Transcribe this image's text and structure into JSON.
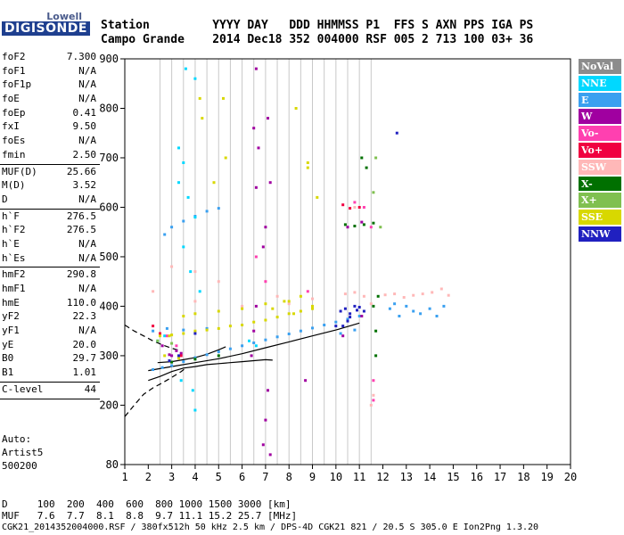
{
  "logo": {
    "brand": "Lowell",
    "product": "DIGISONDE"
  },
  "header": {
    "row1": "Station         YYYY DAY   DDD HHMMSS P1  FFS S AXN PPS IGA PS",
    "row2": "Campo Grande    2014 Dec18 352 004000 RSF 005 2 713 100 03+ 36"
  },
  "params": [
    {
      "name": "foF2",
      "value": "7.300"
    },
    {
      "name": "foF1",
      "value": "N/A"
    },
    {
      "name": "foF1p",
      "value": "N/A"
    },
    {
      "name": "foE",
      "value": "N/A"
    },
    {
      "name": "foEp",
      "value": "0.41"
    },
    {
      "name": "fxI",
      "value": "9.50"
    },
    {
      "name": "foEs",
      "value": "N/A"
    },
    {
      "name": "fmin",
      "value": "2.50"
    },
    {
      "name": "MUF(D)",
      "value": "25.66"
    },
    {
      "name": "M(D)",
      "value": "3.52"
    },
    {
      "name": "D",
      "value": "N/A"
    },
    {
      "name": "h`F",
      "value": "276.5"
    },
    {
      "name": "h`F2",
      "value": "276.5"
    },
    {
      "name": "h`E",
      "value": "N/A"
    },
    {
      "name": "h`Es",
      "value": "N/A"
    },
    {
      "name": "hmF2",
      "value": "290.8"
    },
    {
      "name": "hmF1",
      "value": "N/A"
    },
    {
      "name": "hmE",
      "value": "110.0"
    },
    {
      "name": "yF2",
      "value": "22.3"
    },
    {
      "name": "yF1",
      "value": "N/A"
    },
    {
      "name": "yE",
      "value": "20.0"
    },
    {
      "name": "B0",
      "value": "29.7"
    },
    {
      "name": "B1",
      "value": "1.01"
    },
    {
      "name": "C-level",
      "value": "44"
    }
  ],
  "auto": {
    "line1": "Auto:",
    "line2": "Artist5",
    "line3": "500200"
  },
  "legend": [
    {
      "label": "NoVal",
      "color": "#8c8c8c"
    },
    {
      "label": "NNE",
      "color": "#00d8ff"
    },
    {
      "label": "E",
      "color": "#3aa0f0"
    },
    {
      "label": "W",
      "color": "#a000a0"
    },
    {
      "label": "Vo-",
      "color": "#ff40b0"
    },
    {
      "label": "Vo+",
      "color": "#f00040"
    },
    {
      "label": "SSW",
      "color": "#ffb8b8"
    },
    {
      "label": "X-",
      "color": "#007000"
    },
    {
      "label": "X+",
      "color": "#80c050"
    },
    {
      "label": "SSE",
      "color": "#d8d800"
    },
    {
      "label": "NNW",
      "color": "#2020c0"
    }
  ],
  "footer": {
    "line1": "D     100  200  400  600  800 1000 1500 3000 [km]",
    "line2": "MUF   7.6  7.7  8.1  8.8  9.7 11.1 15.2 25.7 [MHz]",
    "line3": "CGK21_2014352004000.RSF / 380fx512h 50 kHz 2.5 km / DPS-4D CGK21 821 / 20.5 S 305.0 E Ion2Png 1.3.20"
  },
  "chart_data": {
    "type": "scatter",
    "xlim": [
      1,
      20
    ],
    "ylim": [
      80,
      900
    ],
    "x_ticks": [
      1,
      2,
      3,
      4,
      5,
      6,
      7,
      8,
      9,
      10,
      11,
      12,
      13,
      14,
      15,
      16,
      17,
      18,
      19,
      20
    ],
    "y_ticks": [
      80,
      200,
      300,
      400,
      500,
      600,
      700,
      800,
      900
    ],
    "vertical_grid_x": [
      2.5,
      3,
      3.5,
      4,
      4.5,
      5,
      5.5,
      6,
      6.5,
      7,
      7.5,
      8,
      8.5,
      9,
      9.5,
      10,
      10.5,
      11,
      11.5
    ],
    "series": [
      {
        "name": "E",
        "color": "#3aa0f0",
        "points": [
          [
            2.2,
            272
          ],
          [
            2.6,
            276
          ],
          [
            3,
            280
          ],
          [
            3.5,
            288
          ],
          [
            4,
            296
          ],
          [
            4.5,
            302
          ],
          [
            5,
            308
          ],
          [
            5.5,
            314
          ],
          [
            6,
            320
          ],
          [
            6.5,
            326
          ],
          [
            7,
            332
          ],
          [
            7.5,
            338
          ],
          [
            8,
            344
          ],
          [
            8.5,
            350
          ],
          [
            9,
            356
          ],
          [
            9.5,
            362
          ],
          [
            10,
            368
          ],
          [
            10.5,
            374
          ],
          [
            11,
            380
          ],
          [
            2.2,
            350
          ],
          [
            2.8,
            355
          ],
          [
            3.5,
            352
          ],
          [
            4.5,
            355
          ],
          [
            12.3,
            395
          ],
          [
            12.7,
            380
          ],
          [
            13,
            400
          ],
          [
            13.3,
            390
          ],
          [
            13.6,
            385
          ],
          [
            14,
            395
          ],
          [
            14.3,
            380
          ],
          [
            14.6,
            400
          ],
          [
            12.5,
            405
          ],
          [
            3,
            560
          ],
          [
            3.5,
            572
          ],
          [
            4,
            582
          ],
          [
            4.5,
            592
          ],
          [
            2.7,
            545
          ],
          [
            5,
            598
          ],
          [
            10.2,
            345
          ],
          [
            10.8,
            352
          ]
        ]
      },
      {
        "name": "NNE",
        "color": "#00d8ff",
        "points": [
          [
            3.3,
            720
          ],
          [
            3.5,
            690
          ],
          [
            3.3,
            650
          ],
          [
            3.7,
            620
          ],
          [
            4,
            580
          ],
          [
            3.5,
            520
          ],
          [
            3.8,
            470
          ],
          [
            4.2,
            430
          ],
          [
            3.4,
            250
          ],
          [
            3.9,
            230
          ],
          [
            4,
            190
          ],
          [
            3.6,
            880
          ],
          [
            4,
            860
          ],
          [
            6.3,
            330
          ],
          [
            6.6,
            320
          ],
          [
            2.7,
            340
          ],
          [
            2.4,
            330
          ]
        ]
      },
      {
        "name": "W",
        "color": "#a000a0",
        "points": [
          [
            2.6,
            320
          ],
          [
            2.9,
            302
          ],
          [
            3.2,
            310
          ],
          [
            6.6,
            880
          ],
          [
            6.5,
            760
          ],
          [
            6.7,
            720
          ],
          [
            6.6,
            640
          ],
          [
            7.1,
            780
          ],
          [
            7.2,
            650
          ],
          [
            7,
            560
          ],
          [
            6.9,
            520
          ],
          [
            7.1,
            230
          ],
          [
            7,
            170
          ],
          [
            6.9,
            120
          ],
          [
            7.2,
            100
          ],
          [
            6.4,
            300
          ],
          [
            6.5,
            350
          ],
          [
            6.6,
            400
          ],
          [
            3,
            300
          ],
          [
            3.4,
            305
          ],
          [
            8.7,
            250
          ],
          [
            10.5,
            560
          ],
          [
            11.1,
            570
          ],
          [
            10.3,
            340
          ],
          [
            11.1,
            380
          ]
        ]
      },
      {
        "name": "Vo-",
        "color": "#ff40b0",
        "points": [
          [
            10.8,
            610
          ],
          [
            11.2,
            600
          ],
          [
            11.5,
            560
          ],
          [
            11.6,
            250
          ],
          [
            11.6,
            210
          ],
          [
            6.6,
            500
          ],
          [
            7,
            450
          ],
          [
            8.8,
            430
          ],
          [
            3.2,
            320
          ],
          [
            2.8,
            340
          ]
        ]
      },
      {
        "name": "Vo+",
        "color": "#f00040",
        "points": [
          [
            10.3,
            605
          ],
          [
            10.6,
            598
          ],
          [
            11,
            600
          ],
          [
            2.2,
            360
          ],
          [
            2.5,
            345
          ],
          [
            3.4,
            300
          ]
        ]
      },
      {
        "name": "SSW",
        "color": "#ffb8b8",
        "points": [
          [
            10.4,
            425
          ],
          [
            10.8,
            428
          ],
          [
            11.2,
            420
          ],
          [
            11.5,
            405
          ],
          [
            12.1,
            423
          ],
          [
            12.5,
            425
          ],
          [
            12.9,
            418
          ],
          [
            13.3,
            422
          ],
          [
            13.7,
            425
          ],
          [
            14.1,
            428
          ],
          [
            14.5,
            435
          ],
          [
            14.8,
            422
          ],
          [
            2.2,
            430
          ],
          [
            4,
            410
          ],
          [
            6,
            400
          ],
          [
            8,
            405
          ],
          [
            9,
            415
          ],
          [
            3,
            480
          ],
          [
            4,
            470
          ],
          [
            5,
            450
          ],
          [
            7.5,
            420
          ],
          [
            11.5,
            200
          ],
          [
            11.6,
            220
          ],
          [
            10.8,
            600
          ]
        ]
      },
      {
        "name": "X-",
        "color": "#007000",
        "points": [
          [
            10.4,
            565
          ],
          [
            10.8,
            562
          ],
          [
            11.2,
            565
          ],
          [
            11.6,
            568
          ],
          [
            11.3,
            680
          ],
          [
            11.1,
            700
          ],
          [
            11.8,
            420
          ],
          [
            11.6,
            400
          ],
          [
            11.7,
            350
          ],
          [
            11.7,
            300
          ],
          [
            3,
            287
          ],
          [
            4,
            293
          ],
          [
            5,
            300
          ]
        ]
      },
      {
        "name": "X+",
        "color": "#80c050",
        "points": [
          [
            11.6,
            630
          ],
          [
            11.7,
            700
          ],
          [
            11.9,
            560
          ],
          [
            2.4,
            330
          ],
          [
            3,
            325
          ]
        ]
      },
      {
        "name": "SSE",
        "color": "#d8d800",
        "points": [
          [
            2.5,
            340
          ],
          [
            3,
            342
          ],
          [
            3.5,
            345
          ],
          [
            4,
            350
          ],
          [
            4.5,
            352
          ],
          [
            5,
            355
          ],
          [
            5.5,
            360
          ],
          [
            6,
            362
          ],
          [
            6.5,
            368
          ],
          [
            7,
            372
          ],
          [
            7.5,
            378
          ],
          [
            8,
            385
          ],
          [
            8.5,
            390
          ],
          [
            9,
            395
          ],
          [
            3.5,
            380
          ],
          [
            4,
            385
          ],
          [
            5,
            390
          ],
          [
            6,
            395
          ],
          [
            7,
            405
          ],
          [
            8,
            410
          ],
          [
            8.5,
            420
          ],
          [
            9,
            400
          ],
          [
            4.2,
            820
          ],
          [
            4.3,
            780
          ],
          [
            5.2,
            820
          ],
          [
            5.3,
            700
          ],
          [
            4.8,
            650
          ],
          [
            8.3,
            800
          ],
          [
            8.8,
            690
          ],
          [
            9.2,
            620
          ],
          [
            8.8,
            680
          ],
          [
            2.7,
            300
          ],
          [
            3.3,
            295
          ],
          [
            2.9,
            340
          ],
          [
            7.3,
            395
          ],
          [
            7.8,
            410
          ],
          [
            8.2,
            385
          ]
        ]
      },
      {
        "name": "NNW",
        "color": "#2020c0",
        "points": [
          [
            10.2,
            390
          ],
          [
            10.4,
            395
          ],
          [
            10.6,
            385
          ],
          [
            10.9,
            392
          ],
          [
            11,
            398
          ],
          [
            10.3,
            360
          ],
          [
            10.6,
            378
          ],
          [
            10.8,
            400
          ],
          [
            11.2,
            390
          ],
          [
            10.5,
            370
          ],
          [
            10,
            360
          ],
          [
            12.6,
            750
          ],
          [
            2.9,
            290
          ],
          [
            3.3,
            300
          ],
          [
            4,
            345
          ]
        ]
      }
    ],
    "profile_lines": [
      {
        "style": "dashed",
        "points": [
          [
            1.0,
            177
          ],
          [
            1.4,
            200
          ],
          [
            1.8,
            222
          ],
          [
            2.2,
            235
          ],
          [
            2.6,
            245
          ],
          [
            3.0,
            256
          ],
          [
            3.4,
            268
          ],
          [
            3.6,
            275
          ]
        ]
      },
      {
        "style": "solid",
        "points": [
          [
            2.0,
            250
          ],
          [
            2.5,
            258
          ],
          [
            3,
            268
          ],
          [
            3.5,
            275
          ],
          [
            4,
            278
          ],
          [
            4.5,
            282
          ],
          [
            5,
            284
          ],
          [
            5.5,
            286
          ],
          [
            6,
            288
          ],
          [
            6.5,
            290
          ],
          [
            7,
            292
          ],
          [
            7.3,
            291
          ]
        ]
      },
      {
        "style": "solid",
        "points": [
          [
            2.4,
            286
          ],
          [
            3,
            288
          ],
          [
            3.5,
            292
          ],
          [
            4,
            296
          ],
          [
            4.5,
            303
          ],
          [
            5,
            312
          ],
          [
            5.3,
            318
          ]
        ]
      },
      {
        "style": "dashed",
        "points": [
          [
            1.0,
            362
          ],
          [
            1.4,
            350
          ],
          [
            1.8,
            340
          ],
          [
            2.2,
            330
          ],
          [
            2.6,
            322
          ],
          [
            3.0,
            315
          ],
          [
            3.4,
            310
          ]
        ]
      },
      {
        "style": "solid",
        "points": [
          [
            2.0,
            270
          ],
          [
            3,
            278
          ],
          [
            4,
            286
          ],
          [
            5,
            294
          ],
          [
            6,
            304
          ],
          [
            7,
            316
          ],
          [
            8,
            328
          ],
          [
            9,
            340
          ],
          [
            10,
            352
          ],
          [
            11,
            366
          ]
        ]
      }
    ]
  }
}
